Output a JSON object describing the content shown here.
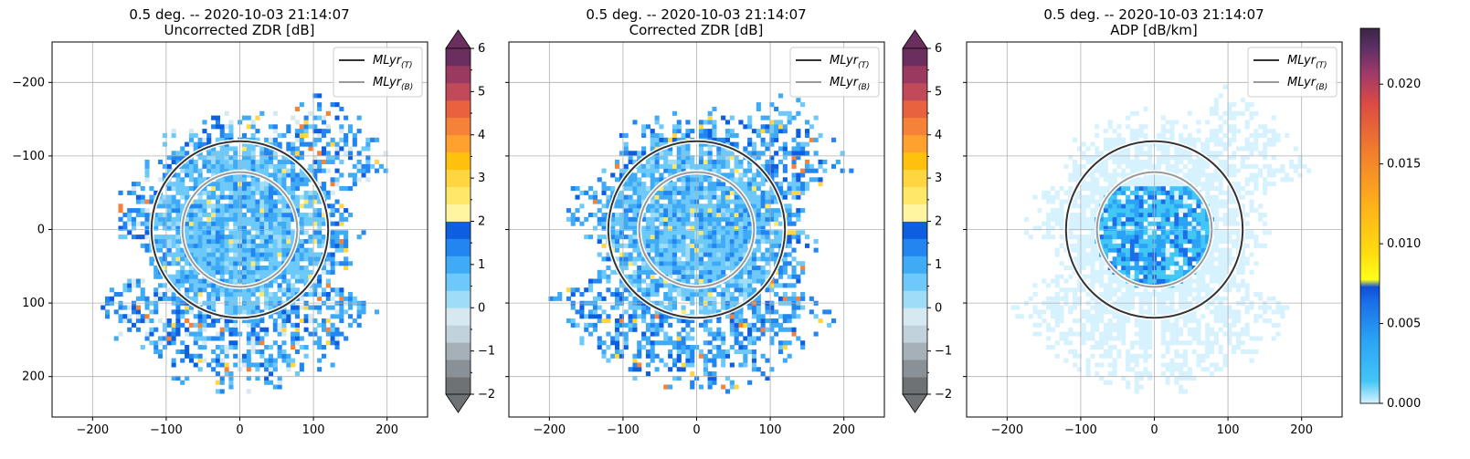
{
  "chart_data": [
    {
      "type": "heatmap",
      "title": "0.5 deg. -- 2020-10-03 21:14:07",
      "subtitle": "Uncorrected ZDR [dB]",
      "xlim": [
        -255,
        255
      ],
      "ylim": [
        -255,
        255
      ],
      "xticks": [
        "−200",
        "−100",
        "0",
        "100",
        "200"
      ],
      "yticks": [
        "−200",
        "−100",
        "0",
        "100",
        "200"
      ],
      "grid": true,
      "legend_position": "top-right",
      "legend": [
        "MLyr_(T)",
        "MLyr_(B)"
      ],
      "melting_layer_radius_km": {
        "top": 120,
        "bottom": 78
      },
      "field": "ZDR",
      "colorbar": {
        "type": "discrete",
        "range": [
          -2,
          6
        ],
        "extend": "both",
        "ticks": [
          "6",
          "5",
          "4",
          "3",
          "2",
          "1",
          "0",
          "−1",
          "−2"
        ],
        "colors": [
          "#6e7275",
          "#8a9196",
          "#a6b0b8",
          "#c1d2dc",
          "#d6e8f0",
          "#9fdcf8",
          "#6cc9fa",
          "#3fabf7",
          "#2385f0",
          "#0d5ee0",
          "#fff5a1",
          "#ffe867",
          "#ffd63f",
          "#ffc10d",
          "#ffa12f",
          "#f58238",
          "#e8623f",
          "#c04a59",
          "#9b3a61",
          "#6a2f5f"
        ]
      }
    },
    {
      "type": "heatmap",
      "title": "0.5 deg. -- 2020-10-03 21:14:07",
      "subtitle": "Corrected ZDR [dB]",
      "xlim": [
        -255,
        255
      ],
      "ylim": [
        -255,
        255
      ],
      "xticks": [
        "−200",
        "−100",
        "0",
        "100",
        "200"
      ],
      "grid": true,
      "legend_position": "top-right",
      "legend": [
        "MLyr_(T)",
        "MLyr_(B)"
      ],
      "melting_layer_radius_km": {
        "top": 120,
        "bottom": 78
      },
      "field": "ZDR",
      "colorbar": {
        "type": "discrete",
        "range": [
          -2,
          6
        ],
        "extend": "both",
        "ticks": [
          "6",
          "5",
          "4",
          "3",
          "2",
          "1",
          "0",
          "−1",
          "−2"
        ],
        "colors": [
          "#6e7275",
          "#8a9196",
          "#a6b0b8",
          "#c1d2dc",
          "#d6e8f0",
          "#9fdcf8",
          "#6cc9fa",
          "#3fabf7",
          "#2385f0",
          "#0d5ee0",
          "#fff5a1",
          "#ffe867",
          "#ffd63f",
          "#ffc10d",
          "#ffa12f",
          "#f58238",
          "#e8623f",
          "#c04a59",
          "#9b3a61",
          "#6a2f5f"
        ]
      }
    },
    {
      "type": "heatmap",
      "title": "0.5 deg. -- 2020-10-03 21:14:07",
      "subtitle": "ADP [dB/km]",
      "xlim": [
        -255,
        255
      ],
      "ylim": [
        -255,
        255
      ],
      "xticks": [
        "−200",
        "−100",
        "0",
        "100",
        "200"
      ],
      "grid": true,
      "legend_position": "top-right",
      "legend": [
        "MLyr_(T)",
        "MLyr_(B)"
      ],
      "melting_layer_radius_km": {
        "top": 120,
        "bottom": 78
      },
      "field": "ADP",
      "colorbar": {
        "type": "continuous",
        "range": [
          0,
          0.0235
        ],
        "extend": "neither",
        "ticks": [
          "0.020",
          "0.015",
          "0.010",
          "0.005",
          "0.000"
        ],
        "tick_values": [
          0.02,
          0.015,
          0.01,
          0.005,
          0.0
        ],
        "colors": [
          "#d7f2ff",
          "#42c6f6",
          "#2aa2f5",
          "#1a6fe8",
          "#0f4fd8",
          "#ffff1a",
          "#ffdc10",
          "#ffb41a",
          "#f07a2e",
          "#db4a45",
          "#9f3a6a",
          "#5b2f63",
          "#3a2645"
        ]
      }
    }
  ]
}
